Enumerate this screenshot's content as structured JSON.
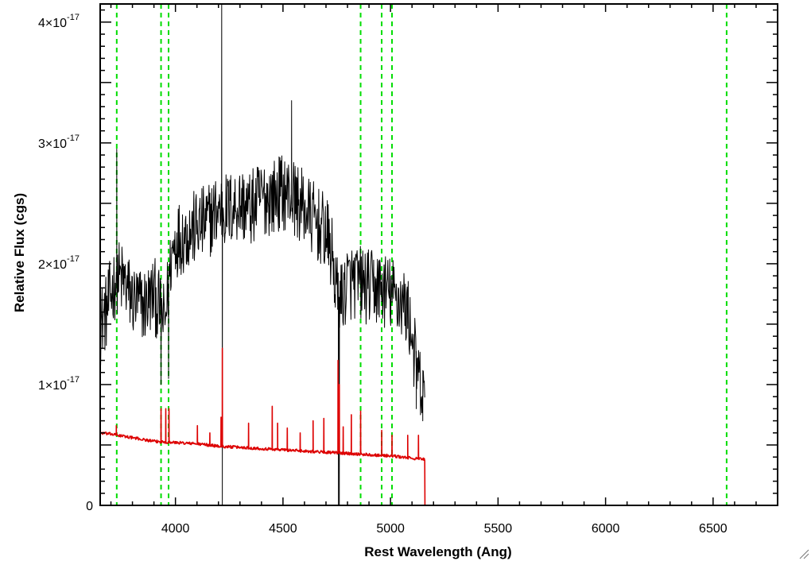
{
  "chart_data": {
    "type": "line",
    "title": "",
    "xlabel": "Rest Wavelength (Ang)",
    "ylabel": "Relative Flux (cgs)",
    "xlim": [
      3650,
      6800
    ],
    "ylim": [
      0,
      4.15e-17
    ],
    "grid": false,
    "legend": "none",
    "x_ticks": [
      {
        "value": 4000,
        "label": "4000"
      },
      {
        "value": 4500,
        "label": "4500"
      },
      {
        "value": 5000,
        "label": "5000"
      },
      {
        "value": 5500,
        "label": "5500"
      },
      {
        "value": 6000,
        "label": "6000"
      },
      {
        "value": 6500,
        "label": "6500"
      }
    ],
    "y_ticks": [
      {
        "value": 0,
        "label": "0",
        "exp": ""
      },
      {
        "value": 1e-17,
        "label": "1×10",
        "exp": "-17"
      },
      {
        "value": 2e-17,
        "label": "2×10",
        "exp": "-17"
      },
      {
        "value": 3e-17,
        "label": "3×10",
        "exp": "-17"
      },
      {
        "value": 4e-17,
        "label": "4×10",
        "exp": "-17"
      }
    ],
    "vertical_lines": [
      3727,
      3933,
      3968,
      4861,
      4959,
      5007,
      6563
    ],
    "vertical_line_color": "#00dd00",
    "series": [
      {
        "color": "#000000",
        "anchors": [
          [
            3650,
            1.45
          ],
          [
            3660,
            1.55
          ],
          [
            3680,
            1.6
          ],
          [
            3700,
            1.75
          ],
          [
            3727,
            1.9
          ],
          [
            3760,
            1.85
          ],
          [
            3800,
            1.7
          ],
          [
            3850,
            1.65
          ],
          [
            3900,
            1.75
          ],
          [
            3930,
            1.6
          ],
          [
            3950,
            1.5
          ],
          [
            3980,
            2.05
          ],
          [
            4000,
            2.2
          ],
          [
            4050,
            2.25
          ],
          [
            4100,
            2.3
          ],
          [
            4150,
            2.35
          ],
          [
            4200,
            2.45
          ],
          [
            4250,
            2.45
          ],
          [
            4300,
            2.5
          ],
          [
            4350,
            2.45
          ],
          [
            4400,
            2.55
          ],
          [
            4450,
            2.55
          ],
          [
            4500,
            2.6
          ],
          [
            4550,
            2.55
          ],
          [
            4600,
            2.45
          ],
          [
            4650,
            2.35
          ],
          [
            4700,
            2.25
          ],
          [
            4730,
            2.05
          ],
          [
            4750,
            1.75
          ],
          [
            4770,
            1.7
          ],
          [
            4800,
            1.85
          ],
          [
            4850,
            1.85
          ],
          [
            4900,
            1.8
          ],
          [
            4950,
            1.8
          ],
          [
            5000,
            1.75
          ],
          [
            5050,
            1.7
          ],
          [
            5080,
            1.6
          ],
          [
            5100,
            1.4
          ],
          [
            5120,
            1.15
          ],
          [
            5140,
            0.95
          ],
          [
            5160,
            0.85
          ]
        ],
        "noise": 0.32,
        "spikes": [
          [
            3727,
            2.95
          ],
          [
            3933,
            1.0
          ],
          [
            3968,
            1.05
          ],
          [
            4215,
            4.15
          ],
          [
            4218,
            0.0
          ],
          [
            4540,
            3.35
          ],
          [
            4758,
            0.0
          ],
          [
            4762,
            0.0
          ],
          [
            5120,
            0.8
          ],
          [
            5150,
            0.7
          ]
        ],
        "end_x": 5160
      },
      {
        "color": "#dd0000",
        "anchors": [
          [
            3650,
            0.6
          ],
          [
            3700,
            0.59
          ],
          [
            3800,
            0.56
          ],
          [
            3900,
            0.53
          ],
          [
            4000,
            0.52
          ],
          [
            4100,
            0.51
          ],
          [
            4200,
            0.49
          ],
          [
            4300,
            0.48
          ],
          [
            4400,
            0.47
          ],
          [
            4500,
            0.46
          ],
          [
            4600,
            0.45
          ],
          [
            4700,
            0.44
          ],
          [
            4800,
            0.43
          ],
          [
            4900,
            0.42
          ],
          [
            5000,
            0.41
          ],
          [
            5100,
            0.39
          ],
          [
            5160,
            0.38
          ]
        ],
        "noise": 0.012,
        "spikes": [
          [
            3725,
            0.66
          ],
          [
            3933,
            0.8
          ],
          [
            3955,
            0.8
          ],
          [
            3970,
            0.8
          ],
          [
            4102,
            0.66
          ],
          [
            4160,
            0.6
          ],
          [
            4212,
            0.73
          ],
          [
            4218,
            1.3
          ],
          [
            4340,
            0.68
          ],
          [
            4450,
            0.82
          ],
          [
            4475,
            0.68
          ],
          [
            4520,
            0.64
          ],
          [
            4580,
            0.6
          ],
          [
            4640,
            0.7
          ],
          [
            4690,
            0.72
          ],
          [
            4756,
            1.2
          ],
          [
            4762,
            1.0
          ],
          [
            4780,
            0.65
          ],
          [
            4818,
            0.75
          ],
          [
            4861,
            0.78
          ],
          [
            4959,
            0.62
          ],
          [
            5007,
            0.58
          ],
          [
            5080,
            0.58
          ],
          [
            5130,
            0.58
          ]
        ],
        "end_x": 5160,
        "tail_value": 0.0,
        "tail_to": 6800
      }
    ]
  }
}
